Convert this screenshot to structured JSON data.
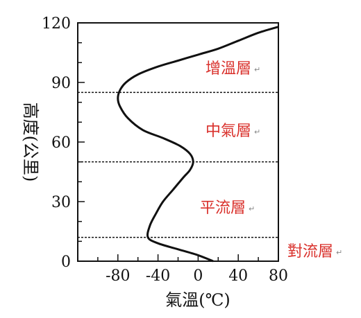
{
  "chart_data": {
    "type": "line",
    "xlabel": "氣溫(℃)",
    "ylabel": "高度(公里)",
    "xlim": [
      -120,
      80
    ],
    "ylim": [
      0,
      120
    ],
    "x_ticks": [
      -80,
      -40,
      0,
      40,
      80
    ],
    "x_tick_labels": [
      "-80",
      "-40",
      "0",
      "40",
      "80"
    ],
    "y_ticks": [
      0,
      30,
      60,
      90,
      120
    ],
    "y_tick_labels": [
      "0",
      "30",
      "60",
      "90",
      "120"
    ],
    "series": [
      {
        "x": [
          15,
          0,
          -20,
          -40,
          -50,
          -48,
          -42,
          -35,
          -25,
          -15,
          -8,
          -5,
          -8,
          -18,
          -35,
          -55,
          -70,
          -78,
          -80,
          -78,
          -72,
          -60,
          -40,
          -20,
          0,
          20,
          40,
          60,
          80
        ],
        "y": [
          0,
          3,
          6,
          9,
          12,
          18,
          24,
          30,
          36,
          42,
          46,
          50,
          54,
          58,
          62,
          66,
          72,
          78,
          82,
          86,
          90,
          94,
          98,
          101,
          104,
          107,
          111,
          115,
          118
        ]
      }
    ],
    "boundaries": [
      12,
      50,
      85
    ],
    "layers": [
      {
        "label": "增溫層",
        "mark": "↵"
      },
      {
        "label": "中氣層",
        "mark": "↵"
      },
      {
        "label": "平流層",
        "mark": "↵"
      },
      {
        "label": "對流層",
        "mark": "↵"
      }
    ],
    "grid": false
  }
}
